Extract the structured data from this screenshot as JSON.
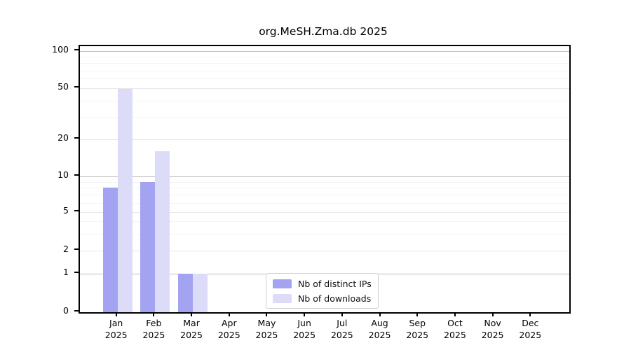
{
  "title": "org.MeSH.Zma.db 2025",
  "chart_data": {
    "type": "bar",
    "title": "org.MeSH.Zma.db 2025",
    "categories": [
      "Jan",
      "Feb",
      "Mar",
      "Apr",
      "May",
      "Jun",
      "Jul",
      "Aug",
      "Sep",
      "Oct",
      "Nov",
      "Dec"
    ],
    "tick_label_line2": "2025",
    "series": [
      {
        "name": "Nb of distinct IPs",
        "color": "#a3a3f2",
        "values": [
          8,
          9,
          1,
          0,
          0,
          0,
          0,
          0,
          0,
          0,
          0,
          0
        ]
      },
      {
        "name": "Nb of downloads",
        "color": "#dcdcf9",
        "values": [
          50,
          16,
          1,
          0,
          0,
          0,
          0,
          0,
          0,
          0,
          0,
          0
        ]
      }
    ],
    "yticks": [
      100,
      50,
      20,
      10,
      5,
      2,
      1,
      0
    ],
    "minor_yticks": [
      90,
      80,
      70,
      60,
      40,
      30,
      9,
      8,
      7,
      6,
      4,
      3
    ],
    "scale": "log-like",
    "ylim": [
      0,
      100
    ],
    "grid": true,
    "legend_position": "lower center",
    "colors": {
      "distinct_ips_bar": "#a3a3f2",
      "downloads_bar": "#dcdcf9",
      "decade_gridline": "#bfbfbf",
      "major_gridline": "#e7e7e7",
      "minor_gridline": "#f4f4f4",
      "axis": "#000000"
    }
  }
}
